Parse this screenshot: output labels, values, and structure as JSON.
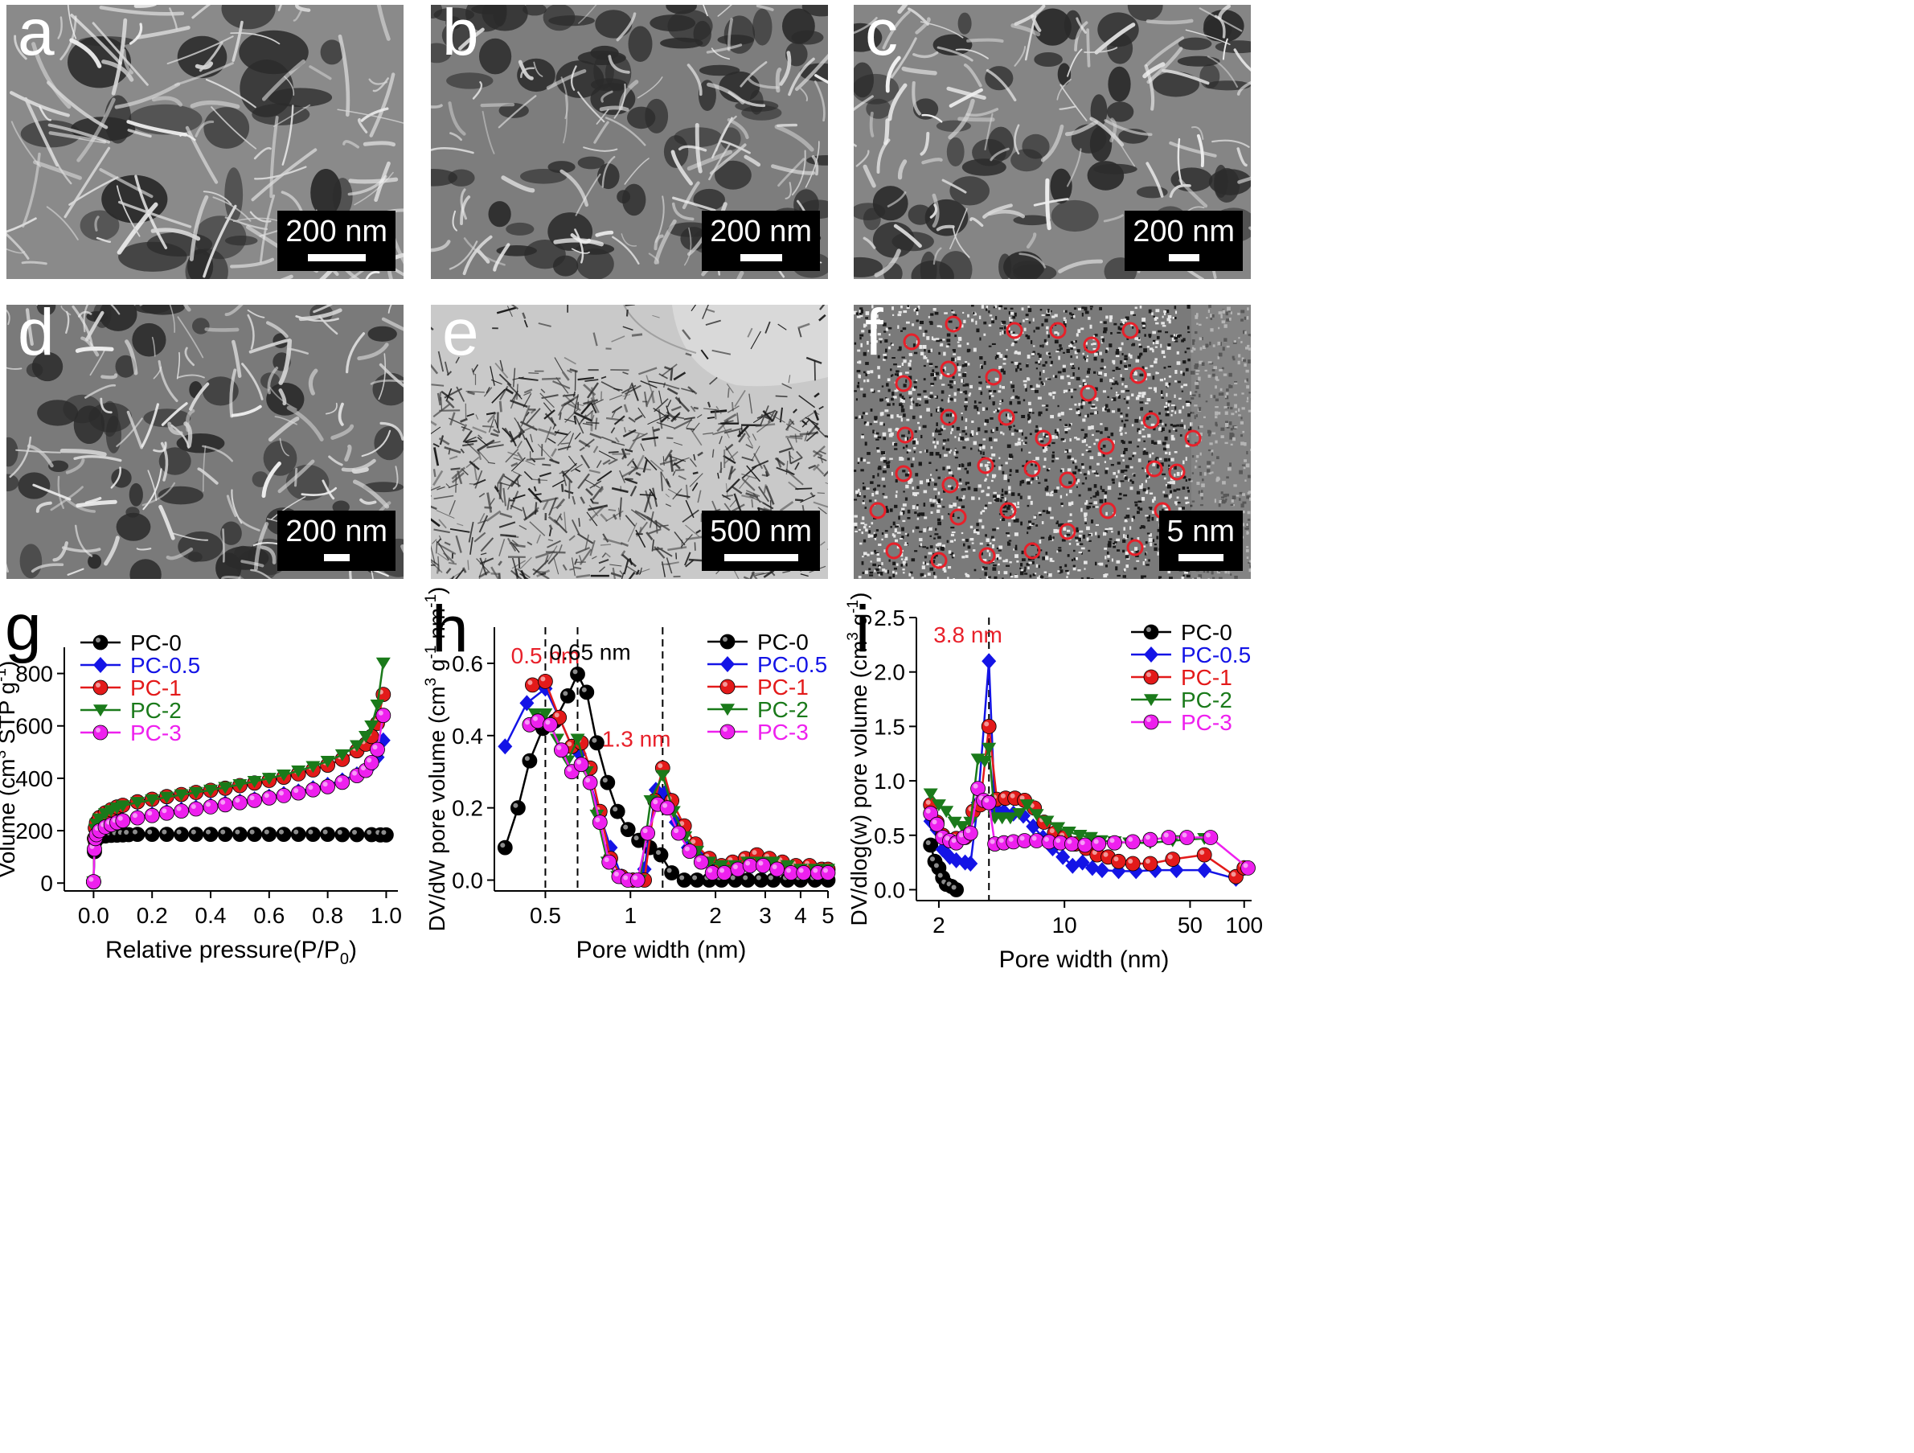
{
  "micrographs": [
    {
      "id": "a",
      "label": "a",
      "scale": "200 nm",
      "kind": "sem-sheets"
    },
    {
      "id": "b",
      "label": "b",
      "scale": "200 nm",
      "kind": "sem-foam"
    },
    {
      "id": "c",
      "label": "c",
      "scale": "200 nm",
      "kind": "sem-rough"
    },
    {
      "id": "d",
      "label": "d",
      "scale": "200 nm",
      "kind": "sem-crumpled"
    },
    {
      "id": "e",
      "label": "e",
      "scale": "500 nm",
      "kind": "tem-low"
    },
    {
      "id": "f",
      "label": "f",
      "scale": "5 nm",
      "kind": "hrtem"
    }
  ],
  "colors": {
    "PC-0": "#000000",
    "PC-0.5": "#1414e6",
    "PC-1": "#e31a1a",
    "PC-2": "#1a7a1a",
    "PC-3": "#ee20ee",
    "circle": "#e8202a",
    "highlight": "#e8202a"
  },
  "chart_data": [
    {
      "panel_label": "g",
      "type": "scatter",
      "xlabel": "Relative pressure(P/P",
      "xlabel_sub": "0",
      "xlabel_end": ")",
      "ylabel": "Volume (cm",
      "ylabel_sup": "3",
      "ylabel_mid": " STP g",
      "ylabel_sup2": "-1",
      "ylabel_end": ")",
      "xlim": [
        -0.1,
        1.04
      ],
      "ylim": [
        -30,
        900
      ],
      "xticks": [
        "0.0",
        "0.2",
        "0.4",
        "0.6",
        "0.8",
        "1.0"
      ],
      "xtick_values": [
        0,
        0.2,
        0.4,
        0.6,
        0.8,
        1.0
      ],
      "yticks": [
        "0",
        "200",
        "400",
        "600",
        "800"
      ],
      "ytick_values": [
        0,
        200,
        400,
        600,
        800
      ],
      "legend_position": "top-left",
      "series": [
        {
          "name": "PC-0",
          "marker": "sphere",
          "x": [
            0.0,
            0.003,
            0.006,
            0.01,
            0.02,
            0.04,
            0.06,
            0.08,
            0.1,
            0.12,
            0.15,
            0.2,
            0.25,
            0.3,
            0.35,
            0.4,
            0.45,
            0.5,
            0.55,
            0.6,
            0.65,
            0.7,
            0.75,
            0.8,
            0.85,
            0.9,
            0.95,
            0.98,
            1.0
          ],
          "y": [
            5,
            120,
            160,
            172,
            176,
            180,
            182,
            183,
            184,
            185,
            186,
            186,
            186,
            186,
            186,
            186,
            186,
            186,
            186,
            186,
            186,
            186,
            186,
            186,
            185,
            185,
            185,
            184,
            184
          ]
        },
        {
          "name": "PC-0.5",
          "marker": "diamond",
          "x": [
            0.0,
            0.003,
            0.006,
            0.01,
            0.02,
            0.04,
            0.06,
            0.08,
            0.1,
            0.15,
            0.2,
            0.25,
            0.3,
            0.35,
            0.4,
            0.45,
            0.5,
            0.55,
            0.6,
            0.65,
            0.7,
            0.75,
            0.8,
            0.85,
            0.9,
            0.93,
            0.95,
            0.97,
            0.99
          ],
          "y": [
            5,
            130,
            170,
            185,
            200,
            215,
            225,
            233,
            240,
            252,
            262,
            272,
            280,
            288,
            296,
            304,
            312,
            320,
            330,
            340,
            350,
            362,
            375,
            392,
            415,
            432,
            450,
            480,
            545
          ]
        },
        {
          "name": "PC-1",
          "marker": "sphere",
          "x": [
            0.0,
            0.003,
            0.006,
            0.01,
            0.02,
            0.04,
            0.06,
            0.08,
            0.1,
            0.15,
            0.2,
            0.25,
            0.3,
            0.35,
            0.4,
            0.45,
            0.5,
            0.55,
            0.6,
            0.65,
            0.7,
            0.75,
            0.8,
            0.85,
            0.9,
            0.93,
            0.95,
            0.97,
            0.99
          ],
          "y": [
            5,
            170,
            210,
            230,
            250,
            268,
            280,
            290,
            297,
            310,
            320,
            330,
            338,
            346,
            354,
            362,
            372,
            382,
            392,
            404,
            417,
            432,
            450,
            472,
            505,
            530,
            560,
            610,
            720
          ]
        },
        {
          "name": "PC-2",
          "marker": "triangle-down",
          "x": [
            0.0,
            0.003,
            0.006,
            0.01,
            0.02,
            0.04,
            0.06,
            0.08,
            0.1,
            0.15,
            0.2,
            0.25,
            0.3,
            0.35,
            0.4,
            0.45,
            0.5,
            0.55,
            0.6,
            0.65,
            0.7,
            0.75,
            0.8,
            0.85,
            0.9,
            0.93,
            0.95,
            0.97,
            0.99
          ],
          "y": [
            5,
            160,
            205,
            225,
            245,
            265,
            277,
            287,
            295,
            308,
            318,
            328,
            337,
            346,
            355,
            365,
            376,
            388,
            400,
            413,
            428,
            445,
            465,
            490,
            525,
            560,
            600,
            680,
            840
          ]
        },
        {
          "name": "PC-3",
          "marker": "sphere",
          "x": [
            0.0,
            0.003,
            0.006,
            0.01,
            0.02,
            0.04,
            0.06,
            0.08,
            0.1,
            0.15,
            0.2,
            0.25,
            0.3,
            0.35,
            0.4,
            0.45,
            0.5,
            0.55,
            0.6,
            0.65,
            0.7,
            0.75,
            0.8,
            0.85,
            0.9,
            0.93,
            0.95,
            0.97,
            0.99
          ],
          "y": [
            5,
            130,
            170,
            185,
            200,
            214,
            223,
            231,
            238,
            249,
            258,
            267,
            275,
            283,
            291,
            299,
            307,
            316,
            325,
            334,
            344,
            356,
            368,
            385,
            410,
            430,
            460,
            510,
            640
          ]
        }
      ]
    },
    {
      "panel_label": "h",
      "type": "line",
      "xscale": "log",
      "xlabel": "Pore width (nm)",
      "ylabel": "DV/dW pore volume (cm",
      "ylabel_sup": "3",
      "ylabel_mid": " g",
      "ylabel_sup2": "-1",
      "ylabel_mid2": " nm",
      "ylabel_sup3": "-1",
      "ylabel_end": ")",
      "xlim": [
        0.33,
        5
      ],
      "ylim": [
        -0.03,
        0.7
      ],
      "xticks": [
        "0.5",
        "1",
        "2",
        "3",
        "4",
        "5"
      ],
      "xtick_values": [
        0.5,
        1,
        2,
        3,
        4,
        5
      ],
      "yticks": [
        "0.0",
        "0.2",
        "0.4",
        "0.6"
      ],
      "ytick_values": [
        0,
        0.2,
        0.4,
        0.6
      ],
      "vlines": [
        0.5,
        0.65,
        1.3
      ],
      "annotations": [
        {
          "text": "0.5 nm",
          "x": 0.5,
          "y": 0.6,
          "color": "highlight"
        },
        {
          "text": "0.65 nm",
          "x": 0.72,
          "y": 0.61,
          "color": "#000000"
        },
        {
          "text": "1.3 nm",
          "x": 1.05,
          "y": 0.37,
          "color": "highlight"
        }
      ],
      "legend_position": "top-right",
      "series": [
        {
          "name": "PC-0",
          "marker": "sphere",
          "x": [
            0.36,
            0.4,
            0.44,
            0.49,
            0.54,
            0.6,
            0.65,
            0.7,
            0.76,
            0.83,
            0.9,
            0.98,
            1.07,
            1.17,
            1.28,
            1.4,
            1.55,
            1.72,
            1.9,
            2.1,
            2.35,
            2.6,
            2.9,
            3.2,
            3.6,
            4.0,
            4.5,
            5.0
          ],
          "y": [
            0.09,
            0.2,
            0.33,
            0.42,
            0.44,
            0.51,
            0.57,
            0.52,
            0.38,
            0.27,
            0.19,
            0.14,
            0.11,
            0.09,
            0.07,
            0.02,
            0.0,
            0.0,
            0.0,
            0.0,
            0.0,
            0.0,
            0.0,
            0.0,
            0.0,
            0.0,
            0.0,
            0.0
          ]
        },
        {
          "name": "PC-0.5",
          "marker": "diamond",
          "x": [
            0.36,
            0.43,
            0.5,
            0.56,
            0.62,
            0.66,
            0.72,
            0.78,
            0.85,
            0.93,
            1.02,
            1.12,
            1.23,
            1.32,
            1.45,
            1.6,
            1.78,
            2.0,
            2.2,
            2.45,
            2.7,
            3.0,
            3.3,
            3.7,
            4.1,
            4.6,
            5.0
          ],
          "y": [
            0.37,
            0.49,
            0.53,
            0.45,
            0.37,
            0.35,
            0.27,
            0.18,
            0.09,
            0.01,
            0.0,
            0.03,
            0.25,
            0.24,
            0.16,
            0.09,
            0.06,
            0.03,
            0.04,
            0.05,
            0.04,
            0.04,
            0.03,
            0.03,
            0.02,
            0.02,
            0.02
          ]
        },
        {
          "name": "PC-1",
          "marker": "sphere",
          "x": [
            0.45,
            0.5,
            0.56,
            0.62,
            0.67,
            0.72,
            0.78,
            0.85,
            0.93,
            1.02,
            1.12,
            1.22,
            1.3,
            1.4,
            1.55,
            1.7,
            1.9,
            2.1,
            2.3,
            2.55,
            2.8,
            3.1,
            3.45,
            3.85,
            4.3,
            4.75,
            5.0
          ],
          "y": [
            0.54,
            0.55,
            0.45,
            0.37,
            0.38,
            0.31,
            0.19,
            0.06,
            0.01,
            0.0,
            0.0,
            0.22,
            0.31,
            0.22,
            0.15,
            0.1,
            0.06,
            0.04,
            0.05,
            0.06,
            0.07,
            0.06,
            0.05,
            0.04,
            0.04,
            0.03,
            0.03
          ]
        },
        {
          "name": "PC-2",
          "marker": "triangle-down",
          "x": [
            0.46,
            0.5,
            0.55,
            0.6,
            0.65,
            0.7,
            0.76,
            0.83,
            0.9,
            0.98,
            1.08,
            1.18,
            1.3,
            1.42,
            1.56,
            1.72,
            1.9,
            2.1,
            2.35,
            2.6,
            2.9,
            3.2,
            3.6,
            4.0,
            4.5,
            5.0
          ],
          "y": [
            0.46,
            0.46,
            0.39,
            0.33,
            0.39,
            0.3,
            0.18,
            0.05,
            0.01,
            0.0,
            0.0,
            0.22,
            0.29,
            0.19,
            0.12,
            0.08,
            0.05,
            0.04,
            0.04,
            0.05,
            0.05,
            0.05,
            0.04,
            0.03,
            0.03,
            0.03
          ]
        },
        {
          "name": "PC-3",
          "marker": "sphere",
          "x": [
            0.44,
            0.47,
            0.52,
            0.57,
            0.62,
            0.67,
            0.72,
            0.78,
            0.84,
            0.91,
            0.98,
            1.06,
            1.15,
            1.25,
            1.35,
            1.48,
            1.62,
            1.78,
            1.95,
            2.15,
            2.4,
            2.65,
            2.95,
            3.3,
            3.7,
            4.1,
            4.6,
            5.0
          ],
          "y": [
            0.43,
            0.44,
            0.43,
            0.36,
            0.3,
            0.32,
            0.27,
            0.16,
            0.05,
            0.01,
            0.0,
            0.0,
            0.13,
            0.21,
            0.2,
            0.13,
            0.08,
            0.05,
            0.02,
            0.02,
            0.03,
            0.04,
            0.04,
            0.03,
            0.02,
            0.02,
            0.02,
            0.02
          ]
        }
      ]
    },
    {
      "panel_label": "i",
      "type": "line",
      "xscale": "log",
      "xlabel": "Pore width (nm)",
      "ylabel": "DV/dlog(w) pore volume (cm",
      "ylabel_sup": "3",
      "ylabel_mid": " g",
      "ylabel_sup2": "-1",
      "ylabel_end": ")",
      "xlim": [
        1.5,
        110
      ],
      "ylim": [
        -0.1,
        2.5
      ],
      "xticks": [
        "2",
        "10",
        "50",
        "100"
      ],
      "xtick_values": [
        2,
        10,
        50,
        100
      ],
      "yticks": [
        "0.0",
        "0.5",
        "1.0",
        "1.5",
        "2.0",
        "2.5"
      ],
      "ytick_values": [
        0,
        0.5,
        1.0,
        1.5,
        2.0,
        2.5
      ],
      "vlines": [
        3.8
      ],
      "annotations": [
        {
          "text": "3.8 nm",
          "x": 2.9,
          "y": 2.27,
          "color": "highlight"
        }
      ],
      "legend_position": "top-right",
      "series": [
        {
          "name": "PC-0",
          "marker": "sphere",
          "x": [
            1.8,
            1.9,
            2.0,
            2.1,
            2.2,
            2.35,
            2.5
          ],
          "y": [
            0.41,
            0.26,
            0.2,
            0.11,
            0.05,
            0.03,
            0.0
          ]
        },
        {
          "name": "PC-0.5",
          "marker": "diamond",
          "x": [
            1.8,
            1.95,
            2.1,
            2.3,
            2.5,
            2.8,
            3.0,
            3.3,
            3.8,
            4.1,
            4.6,
            5.2,
            5.9,
            6.7,
            7.6,
            8.6,
            9.8,
            11.1,
            12.6,
            14.3,
            16.2,
            20,
            25,
            32,
            42,
            60,
            90,
            100
          ],
          "y": [
            0.63,
            0.55,
            0.37,
            0.3,
            0.27,
            0.25,
            0.24,
            0.8,
            2.1,
            0.75,
            0.72,
            0.7,
            0.68,
            0.58,
            0.48,
            0.38,
            0.3,
            0.22,
            0.25,
            0.2,
            0.18,
            0.17,
            0.17,
            0.18,
            0.18,
            0.18,
            0.1,
            0.2
          ]
        },
        {
          "name": "PC-1",
          "marker": "sphere",
          "x": [
            1.8,
            1.95,
            2.1,
            2.3,
            2.5,
            2.8,
            3.1,
            3.4,
            3.8,
            4.2,
            4.7,
            5.3,
            6.0,
            6.8,
            7.7,
            8.8,
            10,
            11.5,
            13.2,
            15.2,
            17.5,
            20,
            24,
            30,
            40,
            60,
            90,
            100
          ],
          "y": [
            0.78,
            0.62,
            0.5,
            0.45,
            0.47,
            0.48,
            0.72,
            0.78,
            1.5,
            0.83,
            0.84,
            0.84,
            0.82,
            0.75,
            0.62,
            0.52,
            0.48,
            0.42,
            0.38,
            0.32,
            0.3,
            0.26,
            0.24,
            0.24,
            0.28,
            0.32,
            0.12,
            0.2
          ]
        },
        {
          "name": "PC-2",
          "marker": "triangle-down",
          "x": [
            1.8,
            2.0,
            2.2,
            2.45,
            2.7,
            3.0,
            3.3,
            3.6,
            3.8,
            4.1,
            4.5,
            5.0,
            5.6,
            6.2,
            7.0,
            8.0,
            9.2,
            10.6,
            12.2,
            14,
            16,
            19,
            23,
            30,
            40,
            60
          ],
          "y": [
            0.88,
            0.78,
            0.72,
            0.62,
            0.58,
            0.62,
            1.2,
            1.18,
            1.3,
            0.66,
            0.66,
            0.66,
            0.7,
            0.78,
            0.69,
            0.63,
            0.57,
            0.53,
            0.5,
            0.48,
            0.45,
            0.44,
            0.43,
            0.43,
            0.45,
            0.47
          ]
        },
        {
          "name": "PC-3",
          "marker": "sphere",
          "x": [
            1.8,
            1.95,
            2.1,
            2.3,
            2.5,
            2.75,
            3.0,
            3.3,
            3.55,
            3.8,
            4.1,
            4.6,
            5.2,
            6.0,
            7.0,
            8.2,
            9.5,
            11,
            13,
            15.5,
            19,
            24,
            30,
            38,
            48,
            65,
            105
          ],
          "y": [
            0.7,
            0.6,
            0.48,
            0.45,
            0.43,
            0.48,
            0.52,
            0.93,
            0.82,
            0.8,
            0.42,
            0.43,
            0.44,
            0.45,
            0.45,
            0.44,
            0.43,
            0.42,
            0.41,
            0.42,
            0.43,
            0.44,
            0.46,
            0.48,
            0.48,
            0.48,
            0.2
          ]
        }
      ]
    }
  ]
}
